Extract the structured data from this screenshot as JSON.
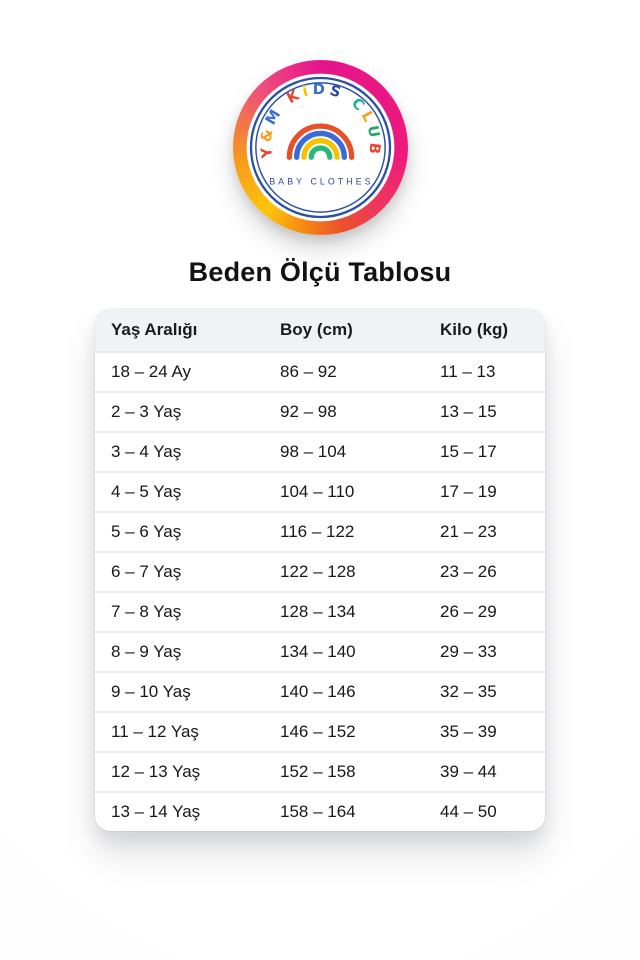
{
  "title": "Beden Ölçü Tablosu",
  "logo": {
    "arc_text": "Y&M KiDS CLUB",
    "arc_letters": [
      {
        "ch": "Y",
        "color": "#e8432d"
      },
      {
        "ch": "&",
        "color": "#f59e1b"
      },
      {
        "ch": "M",
        "color": "#3a6cd4"
      },
      {
        "ch": " ",
        "color": "#000000"
      },
      {
        "ch": "K",
        "color": "#e8432d"
      },
      {
        "ch": "i",
        "color": "#f2c400"
      },
      {
        "ch": "D",
        "color": "#3a6cd4"
      },
      {
        "ch": "S",
        "color": "#2d4a9e"
      },
      {
        "ch": " ",
        "color": "#000000"
      },
      {
        "ch": "C",
        "color": "#17b297"
      },
      {
        "ch": "L",
        "color": "#f59e1b"
      },
      {
        "ch": "U",
        "color": "#2ca45f"
      },
      {
        "ch": "B",
        "color": "#e8432d"
      }
    ],
    "subtitle": "BABY CLOTHES",
    "subtitle_color": "#33439f",
    "blue_ring_color": "#2b4fa8",
    "rainbow_colors": [
      "#e8502a",
      "#3a6cd4",
      "#f2c400",
      "#27b87a"
    ],
    "ring_gradient": [
      "#e6148c 0deg",
      "#ed1a7c 95deg",
      "#ee3a58 140deg",
      "#ea512a 165deg",
      "#f58414 190deg",
      "#fdc50a 220deg",
      "#f6991c 262deg",
      "#ef4d7c 315deg",
      "#e6148c 360deg"
    ]
  },
  "table": {
    "headers": [
      "Yaş Aralığı",
      "Boy (cm)",
      "Kilo (kg)"
    ],
    "rows": [
      [
        "18 – 24 Ay",
        "86 – 92",
        "11 – 13"
      ],
      [
        "2 – 3 Yaş",
        "92 – 98",
        "13 – 15"
      ],
      [
        "3 – 4 Yaş",
        "98 – 104",
        "15 – 17"
      ],
      [
        "4 – 5 Yaş",
        "104 – 110",
        "17 – 19"
      ],
      [
        "5 – 6 Yaş",
        "116 – 122",
        "21 – 23"
      ],
      [
        "6 – 7 Yaş",
        "122 – 128",
        "23 – 26"
      ],
      [
        "7 – 8 Yaş",
        "128 – 134",
        "26 – 29"
      ],
      [
        "8 – 9 Yaş",
        "134 – 140",
        "29 – 33"
      ],
      [
        "9 – 10 Yaş",
        "140 – 146",
        "32 – 35"
      ],
      [
        "11 – 12 Yaş",
        "146 – 152",
        "35 – 39"
      ],
      [
        "12 – 13 Yaş",
        "152 – 158",
        "39 – 44"
      ],
      [
        "13 – 14 Yaş",
        "158 – 164",
        "44 – 50"
      ]
    ]
  }
}
